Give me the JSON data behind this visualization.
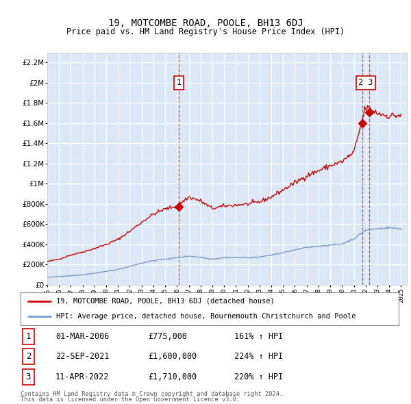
{
  "title": "19, MOTCOMBE ROAD, POOLE, BH13 6DJ",
  "subtitle": "Price paid vs. HM Land Registry's House Price Index (HPI)",
  "legend_property": "19, MOTCOMBE ROAD, POOLE, BH13 6DJ (detached house)",
  "legend_hpi": "HPI: Average price, detached house, Bournemouth Christchurch and Poole",
  "footer1": "Contains HM Land Registry data © Crown copyright and database right 2024.",
  "footer2": "This data is licensed under the Open Government Licence v3.0.",
  "sale_points": [
    {
      "num": "1",
      "date_str": "01-MAR-2006",
      "price_str": "£775,000",
      "pct": "161% ↑ HPI",
      "x_year": 2006.17,
      "price": 775000
    },
    {
      "num": "2",
      "date_str": "22-SEP-2021",
      "price_str": "£1,600,000",
      "pct": "224% ↑ HPI",
      "x_year": 2021.72,
      "price": 1600000
    },
    {
      "num": "3",
      "date_str": "11-APR-2022",
      "price_str": "£1,710,000",
      "pct": "220% ↑ HPI",
      "x_year": 2022.28,
      "price": 1710000
    }
  ],
  "ylim": [
    0,
    2300000
  ],
  "xlim_start": 1995.0,
  "xlim_end": 2025.5,
  "background_color": "#ffffff",
  "plot_bg_color": "#dce8f5",
  "grid_color": "#ffffff",
  "property_line_color": "#cc0000",
  "hpi_line_color": "#7799cc",
  "sale_box_color": "#cc0000",
  "vline_color": "#cc3333",
  "ytick_labels": [
    "£0",
    "£200K",
    "£400K",
    "£600K",
    "£800K",
    "£1M",
    "£1.2M",
    "£1.4M",
    "£1.6M",
    "£1.8M",
    "£2M",
    "£2.2M"
  ],
  "ytick_values": [
    0,
    200000,
    400000,
    600000,
    800000,
    1000000,
    1200000,
    1400000,
    1600000,
    1800000,
    2000000,
    2200000
  ],
  "xtick_years": [
    1995,
    1996,
    1997,
    1998,
    1999,
    2000,
    2001,
    2002,
    2003,
    2004,
    2005,
    2006,
    2007,
    2008,
    2009,
    2010,
    2011,
    2012,
    2013,
    2014,
    2015,
    2016,
    2017,
    2018,
    2019,
    2020,
    2021,
    2022,
    2023,
    2024,
    2025
  ]
}
